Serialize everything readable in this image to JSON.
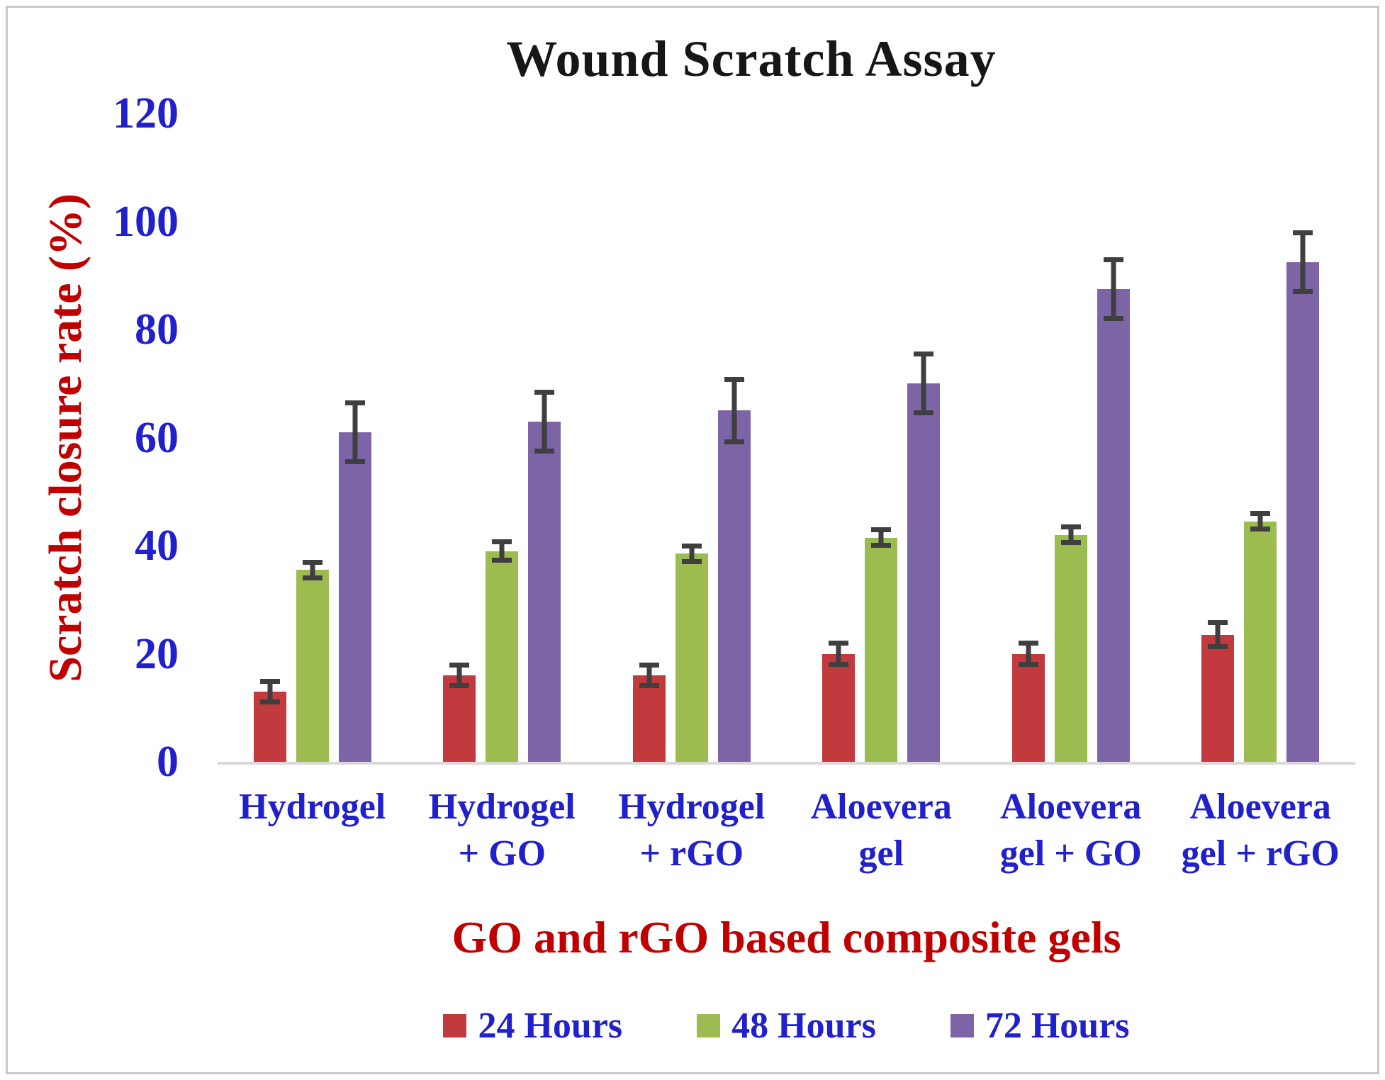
{
  "figure": {
    "background": "#ffffff",
    "border_color": "#c9c9c9"
  },
  "chart_data": {
    "type": "bar",
    "title": "Wound Scratch Assay",
    "xlabel": "GO and rGO based composite gels",
    "ylabel": "Scratch closure rate (%)",
    "ylim": [
      0,
      120
    ],
    "yticks": [
      0,
      20,
      40,
      60,
      80,
      100,
      120
    ],
    "grid": false,
    "legend_position": "bottom",
    "categories": [
      "Hydrogel",
      "Hydrogel + GO",
      "Hydrogel + rGO",
      "Aloevera gel",
      "Aloevera gel + GO",
      "Aloevera gel + rGO"
    ],
    "category_label_lines": [
      [
        "Hydrogel"
      ],
      [
        "Hydrogel",
        "+ GO"
      ],
      [
        "Hydrogel",
        "+ rGO"
      ],
      [
        "Aloevera",
        "gel"
      ],
      [
        "Aloevera",
        "gel + GO"
      ],
      [
        "Aloevera",
        "gel + rGO"
      ]
    ],
    "series": [
      {
        "name": "24 Hours",
        "color": "#c23a3e",
        "values": [
          13,
          16,
          16,
          20,
          20,
          23.5
        ],
        "errors": [
          2,
          2,
          2,
          2,
          2,
          2.3
        ]
      },
      {
        "name": "48 Hours",
        "color": "#9dbc4f",
        "values": [
          35.5,
          39,
          38.5,
          41.5,
          42,
          44.5
        ],
        "errors": [
          1.5,
          1.8,
          1.5,
          1.5,
          1.5,
          1.5
        ]
      },
      {
        "name": "72 Hours",
        "color": "#7d64a7",
        "values": [
          61,
          63,
          65,
          70,
          87.5,
          92.5
        ],
        "errors": [
          5.5,
          5.5,
          5.8,
          5.5,
          5.5,
          5.5
        ]
      }
    ],
    "error_bar_color": "#3f3f3f"
  },
  "styles": {
    "title_color": "#161616",
    "tick_label_color": "#2020cc",
    "category_label_color": "#2020cc",
    "axis_title_color": "#c00000",
    "legend_text_color": "#2020cc",
    "axis_line_color": "#d9d9d9"
  }
}
